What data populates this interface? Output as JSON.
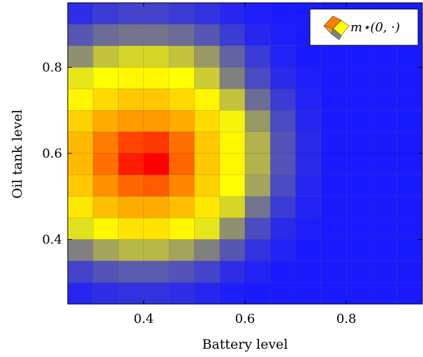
{
  "chart_data": {
    "type": "heatmap",
    "title": "",
    "xlabel": "Battery level",
    "ylabel": "Oil tank level",
    "xlim": [
      0.25,
      0.95
    ],
    "ylim": [
      0.25,
      0.95
    ],
    "x_ticks": [
      0.4,
      0.6,
      0.8
    ],
    "y_ticks": [
      0.4,
      0.6,
      0.8
    ],
    "x_tick_labels": [
      "0.4",
      "0.6",
      "0.8"
    ],
    "y_tick_labels": [
      "0.4",
      "0.6",
      "0.8"
    ],
    "grid": false,
    "legend": {
      "position": "top-right",
      "entry": "m⋆(0, ·)"
    },
    "colormap": [
      "#1a1aff",
      "#808080",
      "#ffff00",
      "#ff8c00",
      "#ff0000"
    ],
    "cell_width": 0.05,
    "cell_height": 0.05,
    "x_centers": [
      0.275,
      0.325,
      0.375,
      0.425,
      0.475,
      0.525,
      0.575,
      0.625,
      0.675,
      0.725,
      0.775,
      0.825,
      0.875,
      0.925
    ],
    "y_centers": [
      0.925,
      0.875,
      0.825,
      0.775,
      0.725,
      0.675,
      0.625,
      0.575,
      0.525,
      0.475,
      0.425,
      0.375,
      0.325,
      0.275
    ],
    "values": [
      [
        0.05,
        0.08,
        0.1,
        0.1,
        0.08,
        0.06,
        0.03,
        0.01,
        0.0,
        0.0,
        0.0,
        0.0,
        0.0,
        0.0
      ],
      [
        0.15,
        0.2,
        0.22,
        0.22,
        0.2,
        0.15,
        0.08,
        0.03,
        0.01,
        0.0,
        0.0,
        0.0,
        0.0,
        0.0
      ],
      [
        0.28,
        0.38,
        0.42,
        0.42,
        0.38,
        0.3,
        0.18,
        0.08,
        0.02,
        0.0,
        0.0,
        0.0,
        0.0,
        0.0
      ],
      [
        0.45,
        0.5,
        0.52,
        0.52,
        0.5,
        0.4,
        0.25,
        0.12,
        0.04,
        0.01,
        0.0,
        0.0,
        0.0,
        0.0
      ],
      [
        0.52,
        0.58,
        0.62,
        0.62,
        0.58,
        0.52,
        0.38,
        0.2,
        0.08,
        0.02,
        0.0,
        0.0,
        0.0,
        0.0
      ],
      [
        0.6,
        0.68,
        0.72,
        0.72,
        0.68,
        0.58,
        0.48,
        0.3,
        0.12,
        0.03,
        0.0,
        0.0,
        0.0,
        0.0
      ],
      [
        0.65,
        0.78,
        0.88,
        0.9,
        0.8,
        0.62,
        0.52,
        0.35,
        0.14,
        0.04,
        0.0,
        0.0,
        0.0,
        0.0
      ],
      [
        0.65,
        0.8,
        0.95,
        1.0,
        0.82,
        0.62,
        0.52,
        0.35,
        0.14,
        0.04,
        0.0,
        0.0,
        0.0,
        0.0
      ],
      [
        0.62,
        0.74,
        0.82,
        0.84,
        0.76,
        0.6,
        0.5,
        0.32,
        0.12,
        0.03,
        0.0,
        0.0,
        0.0,
        0.0
      ],
      [
        0.55,
        0.64,
        0.68,
        0.68,
        0.64,
        0.55,
        0.42,
        0.22,
        0.08,
        0.02,
        0.0,
        0.0,
        0.0,
        0.0
      ],
      [
        0.44,
        0.52,
        0.56,
        0.56,
        0.52,
        0.45,
        0.28,
        0.12,
        0.04,
        0.01,
        0.0,
        0.0,
        0.0,
        0.0
      ],
      [
        0.25,
        0.32,
        0.36,
        0.36,
        0.32,
        0.25,
        0.15,
        0.06,
        0.02,
        0.0,
        0.0,
        0.0,
        0.0,
        0.0
      ],
      [
        0.1,
        0.14,
        0.16,
        0.16,
        0.14,
        0.1,
        0.05,
        0.02,
        0.0,
        0.0,
        0.0,
        0.0,
        0.0,
        0.0
      ],
      [
        0.03,
        0.05,
        0.06,
        0.06,
        0.05,
        0.03,
        0.01,
        0.0,
        0.0,
        0.0,
        0.0,
        0.0,
        0.0,
        0.0
      ]
    ]
  }
}
